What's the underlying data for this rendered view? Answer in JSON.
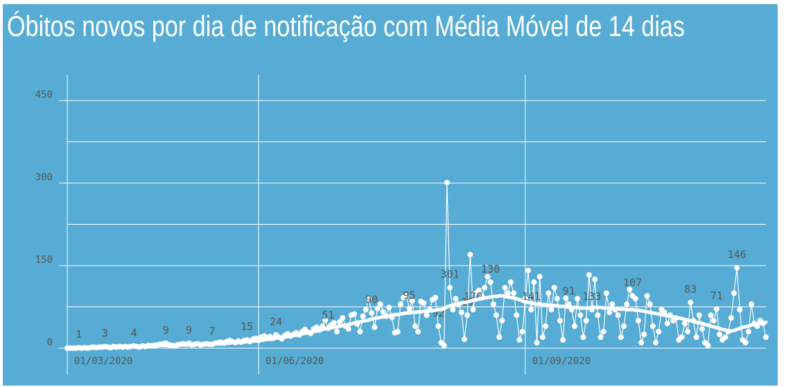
{
  "chart_data": {
    "type": "line",
    "title": "Óbitos novos por dia de notificação com Média Móvel de 14 dias",
    "ylim": [
      0,
      450
    ],
    "yticks": [
      0,
      150,
      300,
      450
    ],
    "yminor": [
      75,
      225,
      375
    ],
    "grid": true,
    "xlim": [
      0,
      241
    ],
    "xticks": [
      {
        "value": 0,
        "label": "01/03/2020"
      },
      {
        "value": 66,
        "label": "01/06/2020"
      },
      {
        "value": 158,
        "label": "01/09/2020"
      }
    ],
    "series": [
      {
        "color": "#ffffff",
        "values": [
          0,
          0,
          0,
          0,
          1,
          0,
          1,
          0,
          1,
          2,
          1,
          2,
          2,
          3,
          2,
          1,
          3,
          2,
          3,
          2,
          3,
          2,
          3,
          4,
          3,
          2,
          4,
          3,
          5,
          4,
          5,
          6,
          7,
          8,
          9,
          6,
          5,
          4,
          6,
          7,
          8,
          7,
          9,
          6,
          7,
          8,
          6,
          7,
          8,
          7,
          7,
          9,
          10,
          11,
          9,
          12,
          14,
          12,
          10,
          13,
          11,
          14,
          15,
          12,
          16,
          18,
          14,
          20,
          22,
          19,
          21,
          18,
          24,
          20,
          17,
          23,
          26,
          22,
          25,
          28,
          24,
          30,
          34,
          29,
          27,
          35,
          38,
          33,
          40,
          51,
          36,
          42,
          46,
          30,
          48,
          55,
          40,
          35,
          60,
          62,
          44,
          30,
          58,
          70,
          90,
          64,
          38,
          72,
          80,
          66,
          58,
          74,
          56,
          28,
          30,
          80,
          92,
          95,
          72,
          86,
          40,
          30,
          85,
          82,
          60,
          70,
          88,
          92,
          40,
          10,
          5,
          301,
          110,
          70,
          90,
          80,
          65,
          16,
          60,
          170,
          70,
          100,
          105,
          95,
          110,
          130,
          120,
          80,
          60,
          20,
          50,
          110,
          100,
          120,
          100,
          60,
          15,
          30,
          90,
          141,
          70,
          120,
          10,
          130,
          20,
          40,
          100,
          70,
          110,
          90,
          50,
          15,
          91,
          80,
          70,
          40,
          90,
          60,
          20,
          50,
          133,
          70,
          125,
          60,
          20,
          30,
          100,
          65,
          80,
          70,
          60,
          20,
          40,
          80,
          107,
          95,
          90,
          50,
          10,
          25,
          95,
          80,
          40,
          10,
          30,
          70,
          65,
          45,
          60,
          50,
          55,
          15,
          20,
          45,
          30,
          83,
          50,
          20,
          60,
          35,
          10,
          5,
          60,
          50,
          71,
          25,
          15,
          20,
          30,
          55,
          100,
          146,
          70,
          15,
          10,
          30,
          80,
          45,
          40,
          50,
          45,
          20
        ],
        "value_labels": [
          null,
          null,
          null,
          null,
          "1",
          null,
          null,
          null,
          null,
          null,
          null,
          null,
          null,
          "3",
          null,
          null,
          null,
          null,
          null,
          null,
          null,
          null,
          null,
          "4",
          null,
          null,
          null,
          null,
          null,
          null,
          null,
          null,
          null,
          null,
          "9",
          null,
          null,
          null,
          null,
          null,
          null,
          null,
          "9",
          null,
          null,
          null,
          null,
          null,
          null,
          null,
          "7",
          null,
          null,
          null,
          null,
          null,
          null,
          null,
          null,
          null,
          null,
          null,
          "15",
          null,
          null,
          null,
          null,
          null,
          null,
          null,
          null,
          null,
          "24",
          null,
          null,
          null,
          null,
          null,
          null,
          null,
          null,
          null,
          null,
          null,
          null,
          null,
          null,
          null,
          null,
          null,
          "51",
          null,
          null,
          null,
          null,
          null,
          null,
          null,
          null,
          null,
          null,
          null,
          null,
          null,
          null,
          "90",
          null,
          null,
          null,
          null,
          null,
          null,
          null,
          null,
          null,
          null,
          null,
          null,
          "95",
          null,
          null,
          null,
          null,
          null,
          null,
          null,
          null,
          null,
          "92",
          null,
          null,
          null,
          "301",
          null,
          null,
          null,
          null,
          null,
          "16",
          null,
          "170",
          null,
          null,
          null,
          null,
          null,
          "130",
          null,
          null,
          null,
          null,
          null,
          null,
          null,
          null,
          null,
          null,
          null,
          null,
          null,
          "141",
          null,
          null,
          null,
          null,
          null,
          null,
          null,
          null,
          null,
          null,
          null,
          null,
          "91",
          null,
          null,
          null,
          null,
          null,
          null,
          null,
          "133",
          null,
          null,
          null,
          null,
          null,
          null,
          null,
          null,
          null,
          null,
          null,
          null,
          null,
          "107",
          null,
          null,
          null,
          null,
          null,
          null,
          null,
          null,
          null,
          null,
          null,
          null,
          null,
          null,
          null,
          null,
          null,
          null,
          null,
          "83",
          null,
          null,
          null,
          null,
          null,
          null,
          null,
          null,
          "71",
          null,
          null,
          null,
          null,
          null,
          null,
          "146",
          null,
          null,
          null,
          null,
          null,
          null,
          null,
          null,
          null,
          null
        ]
      },
      {
        "color": "#ffffff",
        "values": [
          0,
          0,
          0,
          0,
          0,
          0,
          0,
          1,
          1,
          1,
          1,
          1,
          1,
          1,
          2,
          2,
          2,
          2,
          2,
          2,
          2,
          2,
          2,
          3,
          3,
          3,
          3,
          3,
          3,
          4,
          4,
          4,
          5,
          5,
          5,
          5,
          5,
          6,
          6,
          6,
          6,
          6,
          6,
          7,
          7,
          7,
          7,
          7,
          7,
          7,
          7,
          8,
          8,
          8,
          8,
          9,
          9,
          10,
          10,
          10,
          11,
          11,
          12,
          12,
          13,
          13,
          14,
          14,
          15,
          16,
          16,
          17,
          18,
          19,
          19,
          20,
          21,
          22,
          23,
          24,
          25,
          26,
          27,
          28,
          29,
          30,
          31,
          32,
          34,
          35,
          36,
          37,
          38,
          39,
          40,
          41,
          42,
          43,
          44,
          46,
          47,
          48,
          49,
          50,
          51,
          53,
          54,
          55,
          56,
          57,
          58,
          59,
          60,
          61,
          61,
          62,
          63,
          64,
          64,
          65,
          65,
          66,
          66,
          67,
          67,
          68,
          68,
          69,
          70,
          70,
          72,
          75,
          77,
          78,
          80,
          81,
          82,
          83,
          84,
          86,
          87,
          88,
          89,
          90,
          91,
          92,
          93,
          94,
          94,
          95,
          95,
          94,
          93,
          92,
          91,
          90,
          88,
          86,
          84,
          83,
          82,
          81,
          80,
          80,
          79,
          79,
          78,
          78,
          77,
          77,
          76,
          76,
          75,
          75,
          74,
          74,
          74,
          73,
          73,
          73,
          73,
          74,
          74,
          74,
          74,
          73,
          73,
          72,
          72,
          72,
          71,
          71,
          71,
          70,
          70,
          70,
          69,
          69,
          68,
          67,
          66,
          65,
          64,
          63,
          62,
          61,
          60,
          59,
          58,
          57,
          56,
          55,
          54,
          52,
          51,
          50,
          49,
          47,
          46,
          45,
          43,
          42,
          40,
          39,
          37,
          36,
          34,
          33,
          32,
          31,
          32,
          34,
          36,
          38,
          39,
          40,
          42,
          43,
          44,
          45,
          46,
          47
        ]
      }
    ]
  }
}
